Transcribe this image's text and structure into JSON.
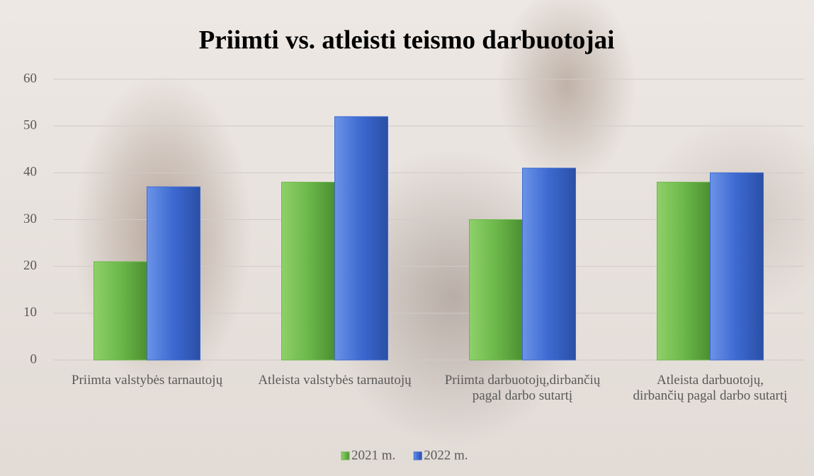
{
  "chart_data": {
    "type": "bar",
    "title": "Priimti vs. atleisti teismo darbuotojai",
    "categories": [
      "Priimta valstybės tarnautojų",
      "Atleista valstybės tarnautojų",
      "Priimta darbuotojų,dirbančių pagal darbo sutartį",
      "Atleista darbuotojų, dirbančių pagal darbo sutartį"
    ],
    "series": [
      {
        "name": "2021 m.",
        "color": "#6cb84a",
        "values": [
          21,
          38,
          30,
          38
        ]
      },
      {
        "name": "2022 m.",
        "color": "#3d69d0",
        "values": [
          37,
          52,
          41,
          40
        ]
      }
    ],
    "ylim": [
      0,
      60
    ],
    "yticks": [
      0,
      10,
      20,
      30,
      40,
      50,
      60
    ],
    "grid": true,
    "legend": "bottom"
  }
}
